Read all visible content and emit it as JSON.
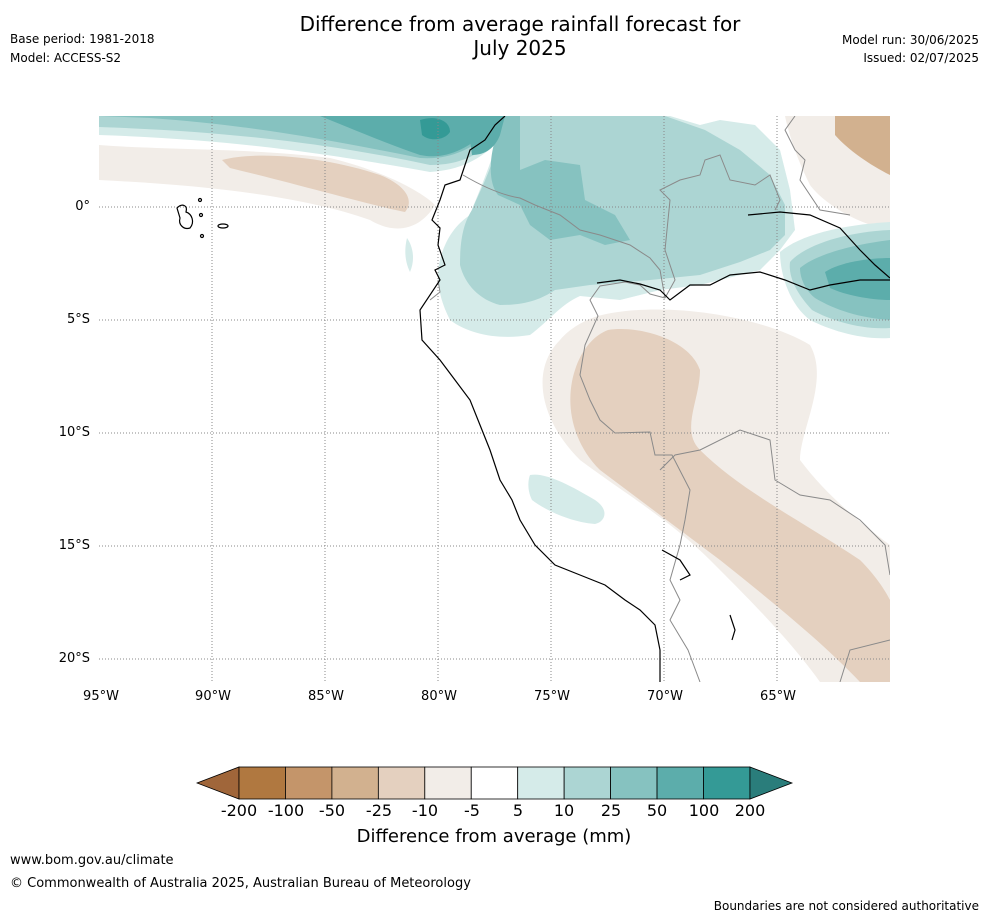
{
  "header": {
    "title_line1": "Difference from average rainfall forecast for",
    "title_line2": "July 2025",
    "base_period": "Base period: 1981-2018",
    "model": "Model: ACCESS-S2",
    "model_run": "Model run: 30/06/2025",
    "issued": "Issued: 02/07/2025"
  },
  "map": {
    "lat_labels": [
      "0°",
      "5°S",
      "10°S",
      "15°S",
      "20°S"
    ],
    "lon_labels": [
      "95°W",
      "90°W",
      "85°W",
      "80°W",
      "75°W",
      "70°W",
      "65°W"
    ]
  },
  "colorbar": {
    "tick_labels": [
      "-200",
      "-100",
      "-50",
      "-25",
      "-10",
      "-5",
      "5",
      "10",
      "25",
      "50",
      "100",
      "200"
    ],
    "colors": [
      "#a0663a",
      "#b07840",
      "#c4956a",
      "#d2b18f",
      "#e4d0bf",
      "#f2ede8",
      "#ffffff",
      "#d5ebe9",
      "#acd5d3",
      "#86c2c0",
      "#5cadab",
      "#349a96",
      "#2a7d7b"
    ],
    "title": "Difference from average (mm)"
  },
  "footer": {
    "url": "www.bom.gov.au/climate",
    "copyright": "© Commonwealth of Australia 2025, Australian Bureau of Meteorology",
    "disclaimer": "Boundaries are not considered authoritative"
  }
}
